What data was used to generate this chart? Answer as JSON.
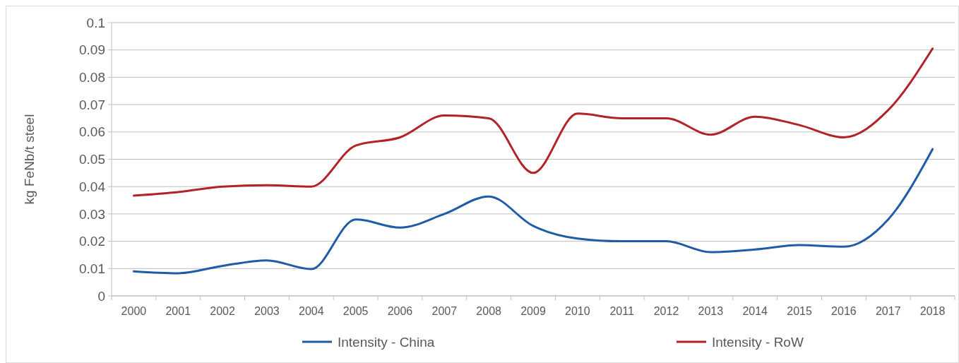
{
  "chart_data": {
    "type": "line",
    "ylabel": "kg FeNb/t steel",
    "categories": [
      "2000",
      "2001",
      "2002",
      "2003",
      "2004",
      "2005",
      "2006",
      "2007",
      "2008",
      "2009",
      "2010",
      "2011",
      "2012",
      "2013",
      "2014",
      "2015",
      "2016",
      "2017",
      "2018"
    ],
    "series": [
      {
        "name": "Intensity - China",
        "color": "#1f5ca8",
        "values": [
          0.009,
          0.0083,
          0.011,
          0.013,
          0.0098,
          0.028,
          0.025,
          0.03,
          0.0364,
          0.0256,
          0.021,
          0.02,
          0.02,
          0.016,
          0.017,
          0.0186,
          0.018,
          0.028,
          0.0537
        ]
      },
      {
        "name": "Intensity - RoW",
        "color": "#b22226",
        "values": [
          0.0367,
          0.038,
          0.04,
          0.0405,
          0.04,
          0.055,
          0.058,
          0.066,
          0.065,
          0.045,
          0.0667,
          0.065,
          0.065,
          0.059,
          0.0656,
          0.0625,
          0.058,
          0.068,
          0.0905
        ]
      }
    ],
    "ylim": [
      0,
      0.1
    ],
    "yticks": [
      0,
      0.01,
      0.02,
      0.03,
      0.04,
      0.05,
      0.06,
      0.07,
      0.08,
      0.09,
      0.1
    ],
    "grid": "y",
    "legend": "bottom",
    "marker": "none",
    "line_style": "solid"
  }
}
